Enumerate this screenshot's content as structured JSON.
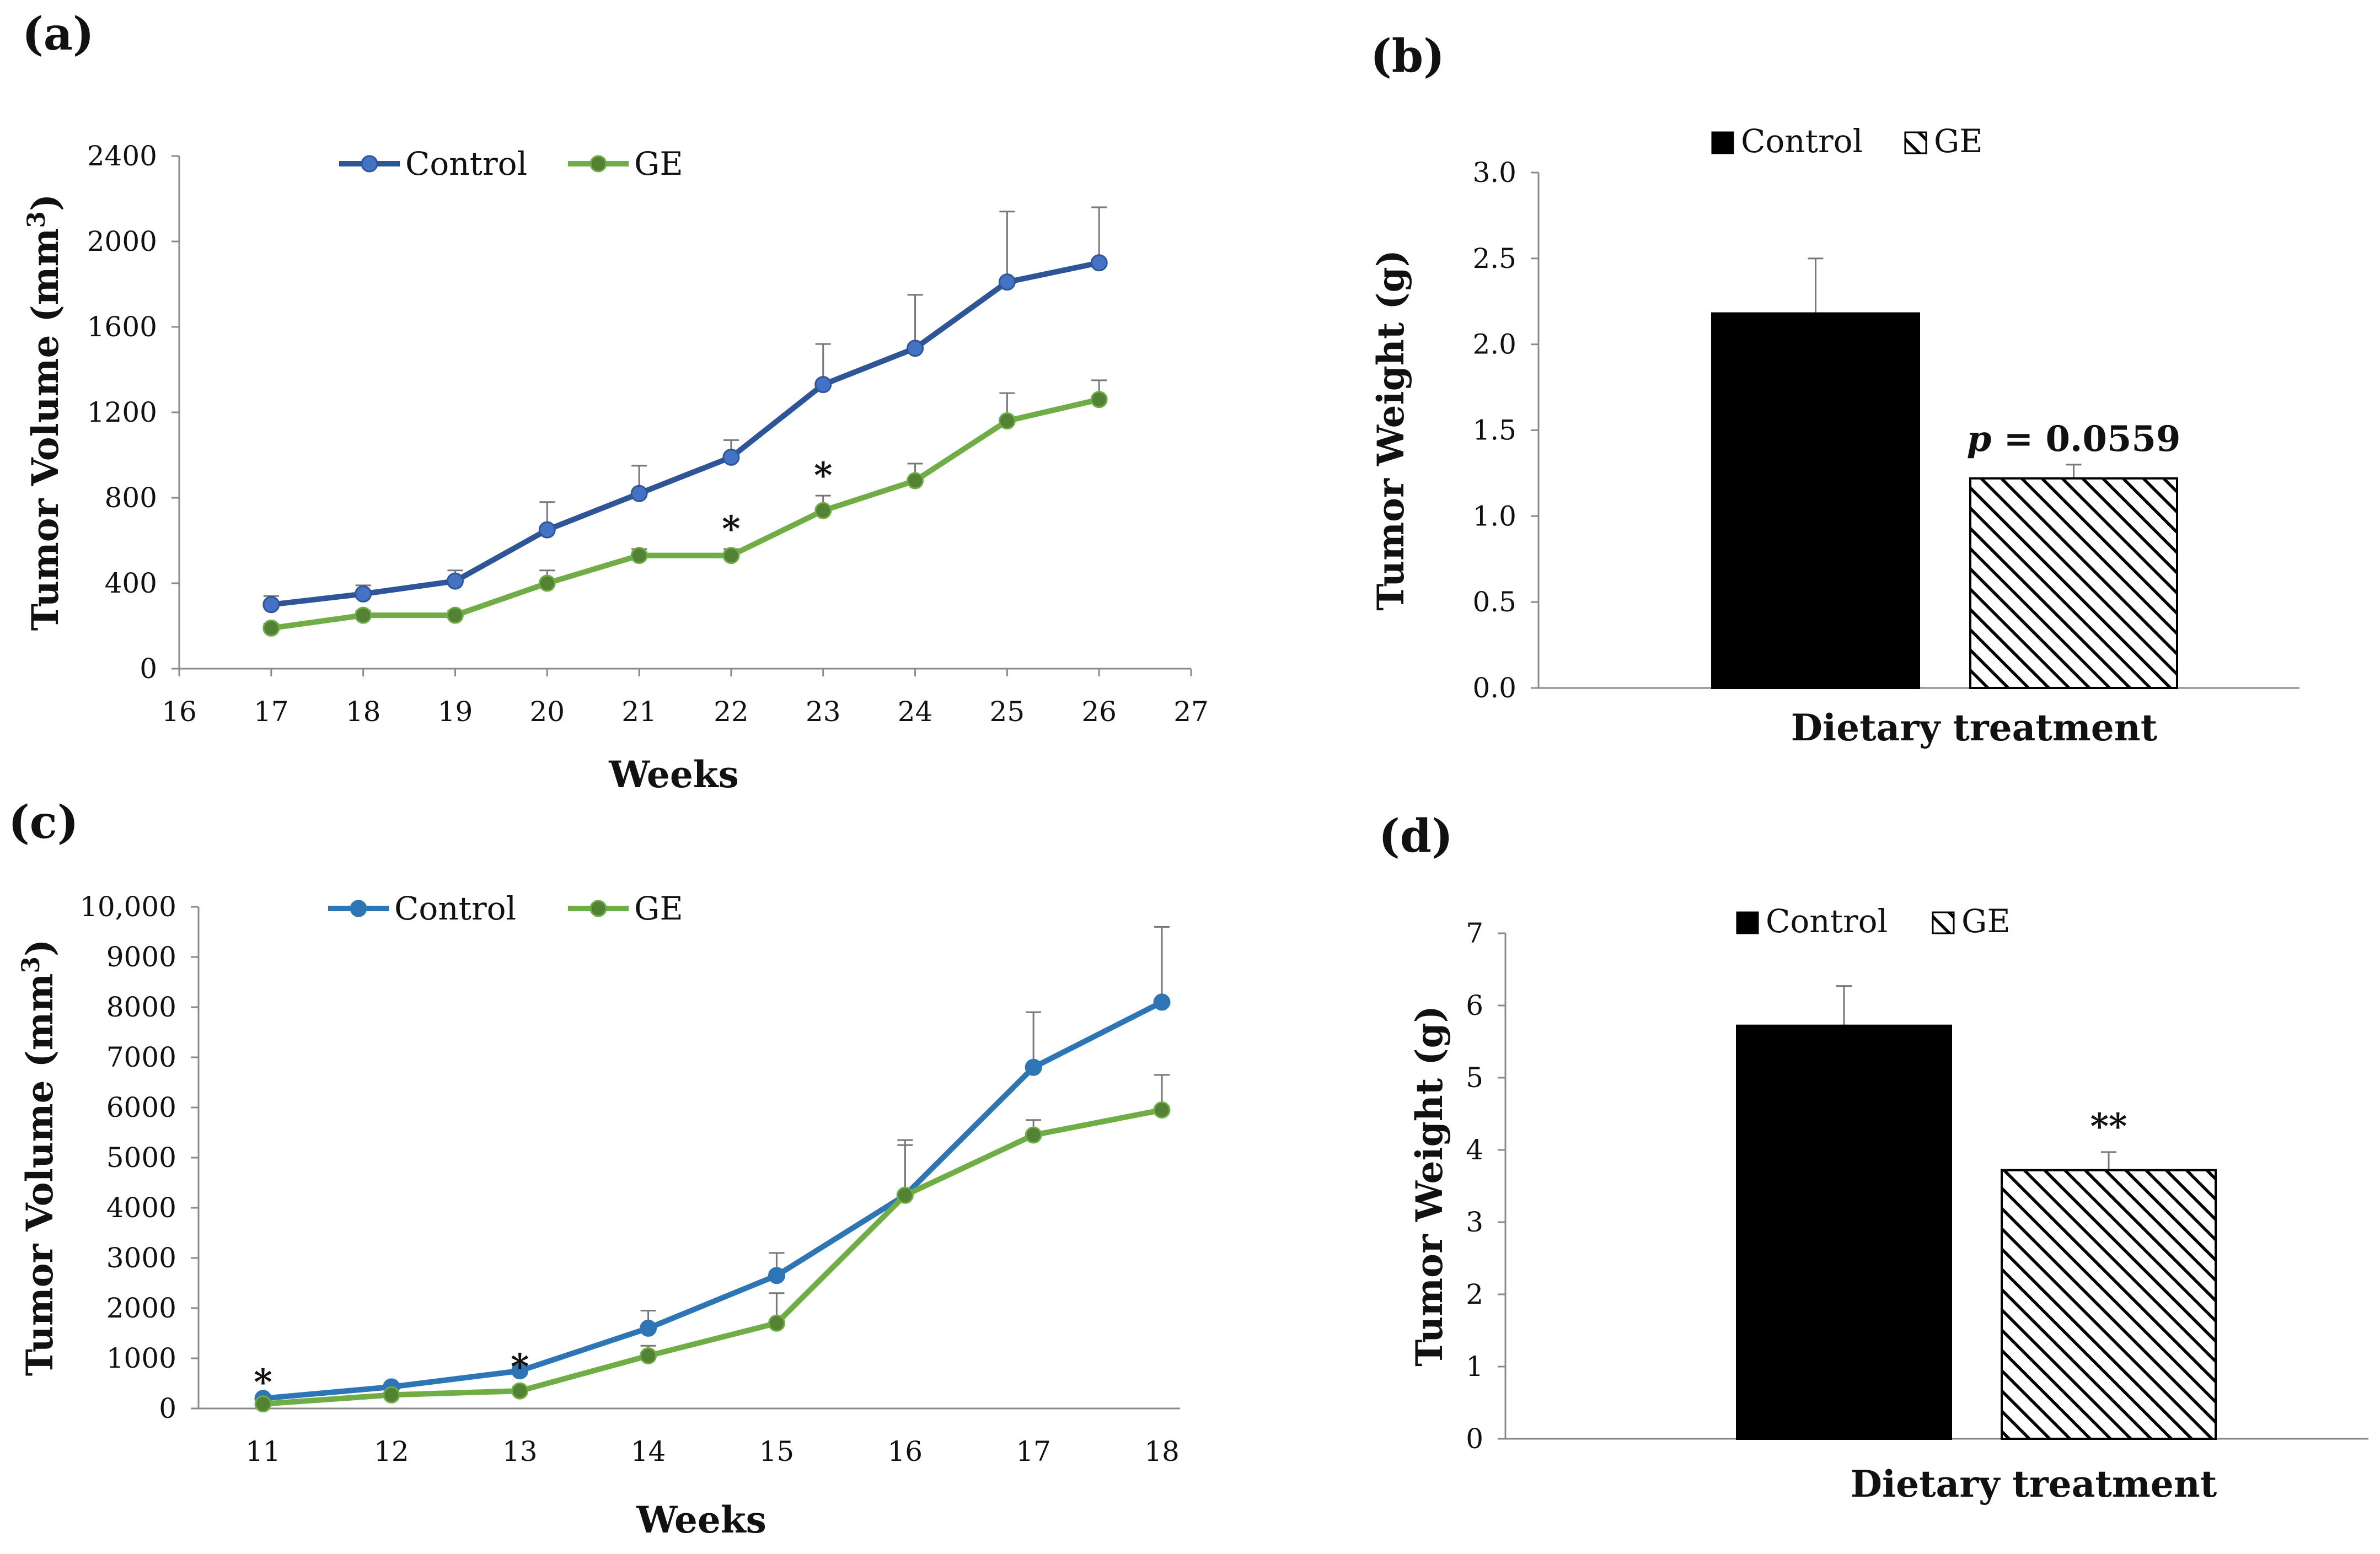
{
  "colors": {
    "control_line_a": "#2E5597",
    "control_marker_a": "#4472C4",
    "ge_line": "#70AD47",
    "ge_marker": "#548235",
    "control_line_c": "#2E75B6",
    "control_bar": "#000000",
    "ge_bar_hatch": "#000000"
  },
  "chart_data": [
    {
      "panel": "(a)",
      "type": "line",
      "xlabel": "Weeks",
      "ylabel": "Tumor Volume (mm³)",
      "ylabel_main": "Tumor Volume (mm",
      "ylabel_sup": "3",
      "ylabel_close": ")",
      "xlim": [
        16,
        27
      ],
      "ylim": [
        0,
        2400
      ],
      "xticks": [
        "16",
        "17",
        "18",
        "19",
        "20",
        "21",
        "22",
        "23",
        "24",
        "25",
        "26",
        "27"
      ],
      "yticks": [
        "0",
        "400",
        "800",
        "1200",
        "1600",
        "2000",
        "2400"
      ],
      "grid": false,
      "legend_position": "top",
      "x": [
        17,
        18,
        19,
        20,
        21,
        22,
        23,
        24,
        25,
        26
      ],
      "series": [
        {
          "name": "Control",
          "values": [
            300,
            350,
            410,
            650,
            820,
            990,
            1330,
            1500,
            1810,
            1900
          ],
          "errors": [
            40,
            40,
            50,
            130,
            130,
            80,
            190,
            250,
            330,
            260
          ]
        },
        {
          "name": "GE",
          "values": [
            190,
            250,
            250,
            400,
            530,
            530,
            740,
            880,
            1160,
            1260
          ],
          "errors": [
            20,
            20,
            20,
            60,
            30,
            30,
            70,
            80,
            130,
            90
          ]
        }
      ],
      "annotations": [
        {
          "x": 22,
          "text": "*"
        },
        {
          "x": 23,
          "text": "*"
        }
      ]
    },
    {
      "panel": "(b)",
      "type": "bar",
      "xlabel": "Dietary treatment",
      "ylabel": "Tumor Weight (g)",
      "ylim": [
        0,
        3.0
      ],
      "yticks": [
        "0.0",
        "0.5",
        "1.0",
        "1.5",
        "2.0",
        "2.5",
        "3.0"
      ],
      "grid": false,
      "legend_position": "top",
      "categories": [
        "Control",
        "GE"
      ],
      "values": [
        2.18,
        1.22
      ],
      "errors": [
        0.32,
        0.08
      ],
      "annotation": {
        "italic": "p",
        "text": " = 0.0559"
      }
    },
    {
      "panel": "(c)",
      "type": "line",
      "xlabel": "Weeks",
      "ylabel": "Tumor Volume (mm³)",
      "ylabel_main": "Tumor Volume (mm",
      "ylabel_sup": "3",
      "ylabel_close": ")",
      "ylim": [
        0,
        10000
      ],
      "xticks": [
        "11",
        "12",
        "13",
        "14",
        "15",
        "16",
        "17",
        "18"
      ],
      "yticks": [
        "0",
        "1000",
        "2000",
        "3000",
        "4000",
        "5000",
        "6000",
        "7000",
        "8000",
        "9000",
        "10,000"
      ],
      "grid": false,
      "legend_position": "top",
      "x": [
        11,
        12,
        13,
        14,
        15,
        16,
        17,
        18
      ],
      "series": [
        {
          "name": "Control",
          "values": [
            200,
            430,
            750,
            1600,
            2650,
            4250,
            6800,
            8100
          ],
          "errors": [
            50,
            80,
            100,
            350,
            450,
            1100,
            1100,
            1500
          ]
        },
        {
          "name": "GE",
          "values": [
            90,
            270,
            350,
            1050,
            1700,
            4250,
            5450,
            5950
          ],
          "errors": [
            30,
            50,
            80,
            200,
            600,
            1000,
            300,
            700
          ]
        }
      ],
      "annotations": [
        {
          "x": 11,
          "text": "*"
        },
        {
          "x": 13,
          "text": "*"
        }
      ]
    },
    {
      "panel": "(d)",
      "type": "bar",
      "xlabel": "Dietary treatment",
      "ylabel": "Tumor Weight (g)",
      "ylim": [
        0,
        7
      ],
      "yticks": [
        "0",
        "1",
        "2",
        "3",
        "4",
        "5",
        "6",
        "7"
      ],
      "grid": false,
      "legend_position": "top",
      "categories": [
        "Control",
        "GE"
      ],
      "values": [
        5.72,
        3.72
      ],
      "errors": [
        0.55,
        0.25
      ],
      "annotation": {
        "italic": "",
        "text": "**"
      }
    }
  ]
}
